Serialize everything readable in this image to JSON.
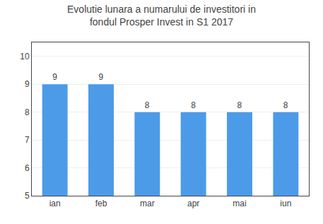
{
  "chart_data": {
    "type": "bar",
    "title": "Evolutie lunara a numarului de investitori in fondul Prosper Invest in S1 2017",
    "categories": [
      "ian",
      "feb",
      "mar",
      "apr",
      "mai",
      "iun"
    ],
    "values": [
      9,
      9,
      8,
      8,
      8,
      8
    ],
    "color": "#4C9BE8",
    "ylim": [
      5,
      10.5
    ],
    "yticks": [
      5,
      6,
      7,
      8,
      9,
      10
    ],
    "grid": true,
    "data_labels": true
  }
}
